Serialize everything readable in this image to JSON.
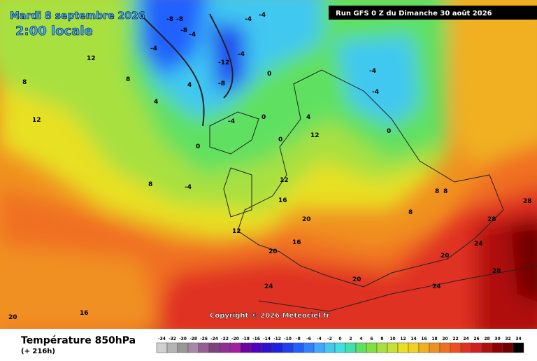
{
  "header": {
    "date": "Mardi 8 septembre 2026",
    "time": "2:00 locale",
    "run": "Run GFS 0 Z du Dimanche 30 août 2026"
  },
  "copyright": "Copyright © 2026 Meteociel.fr",
  "footer": {
    "title": "Température 850hPa",
    "lead": "(+ 216h)"
  },
  "legend": {
    "ticks": [
      -34,
      -32,
      -30,
      -28,
      -26,
      -24,
      -22,
      -20,
      -18,
      -16,
      -14,
      -12,
      -10,
      -8,
      -6,
      -4,
      -2,
      0,
      2,
      4,
      6,
      8,
      10,
      12,
      14,
      16,
      18,
      20,
      22,
      24,
      26,
      28,
      30,
      32,
      34
    ],
    "colors": [
      "#d0d0d0",
      "#b4b4b4",
      "#989898",
      "#a888a8",
      "#946094",
      "#804080",
      "#903090",
      "#a020a0",
      "#7000a0",
      "#5000c0",
      "#3010d0",
      "#2020e0",
      "#2040f0",
      "#2060ff",
      "#3080ff",
      "#40a8ff",
      "#40c8f0",
      "#40e0e0",
      "#40e0a8",
      "#60e060",
      "#80e040",
      "#a8e040",
      "#c8e030",
      "#e8e020",
      "#f0d020",
      "#f0b020",
      "#f09020",
      "#f07020",
      "#f05020",
      "#e03020",
      "#d02020",
      "#b01010",
      "#900000",
      "#700000",
      "#000000"
    ]
  },
  "map": {
    "labels": [
      -8,
      -8,
      -4,
      -4,
      -4,
      -4,
      -12,
      -8,
      -4,
      -8,
      -4,
      -4,
      -4,
      -4,
      0,
      0,
      0,
      0,
      0,
      4,
      4,
      4,
      8,
      8,
      8,
      12,
      12,
      12,
      12,
      12,
      16,
      16,
      16,
      20,
      20,
      20,
      20,
      24,
      24,
      24,
      28,
      28,
      28,
      20,
      8,
      8,
      8
    ]
  }
}
